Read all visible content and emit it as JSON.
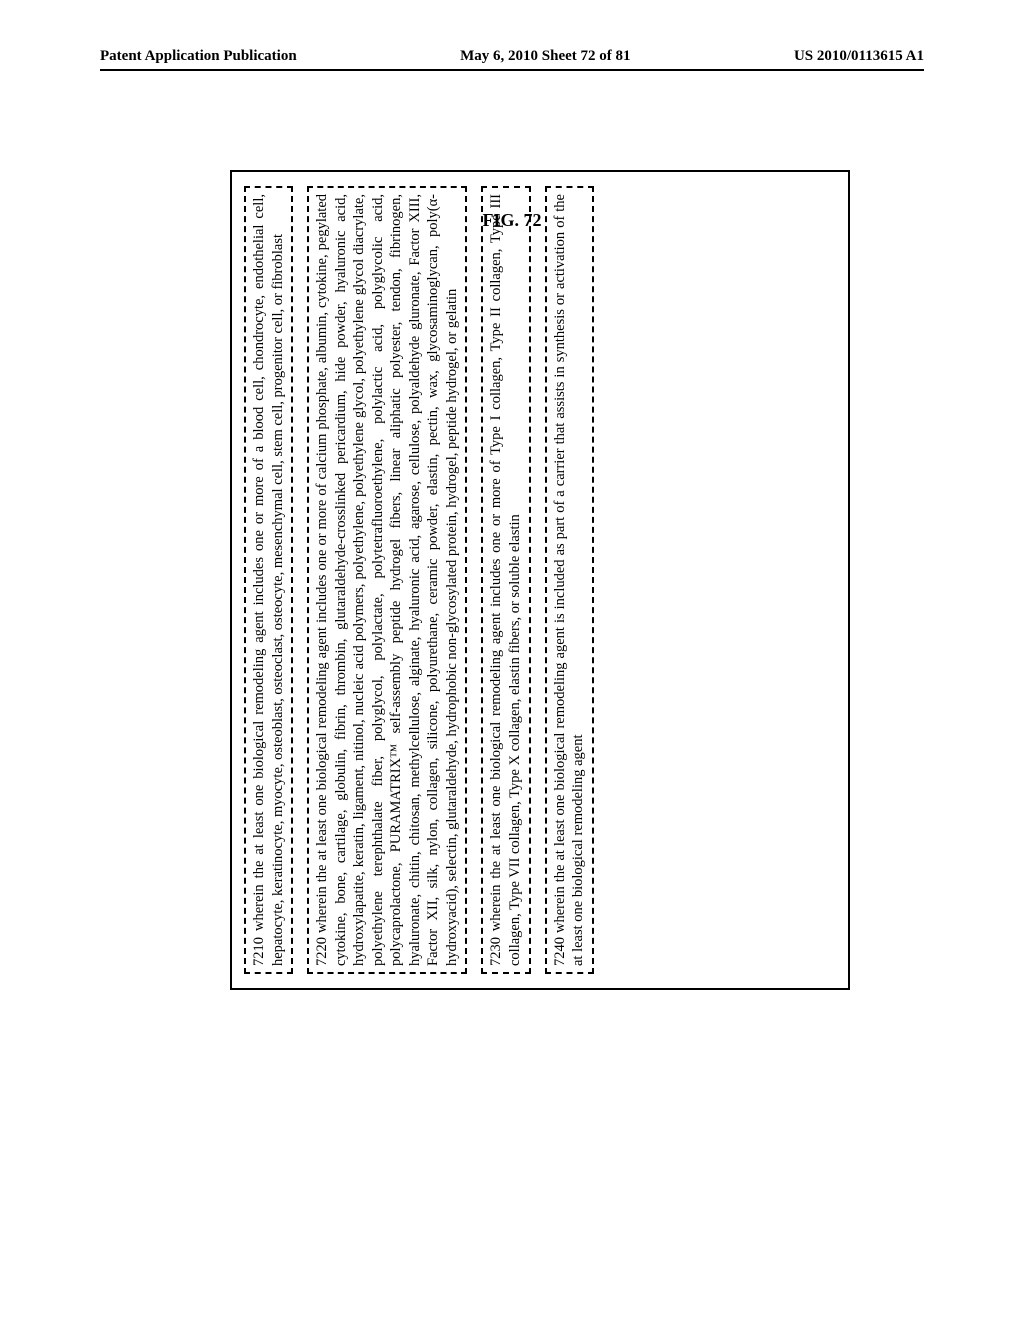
{
  "header": {
    "left": "Patent Application Publication",
    "center": "May 6, 2010  Sheet 72 of 81",
    "right": "US 2010/0113615 A1"
  },
  "figure_label": "FIG. 72",
  "claims": [
    {
      "num": "7210",
      "text": "wherein the at least one biological remodeling agent includes one or more of a blood cell, chondrocyte, endothelial cell, hepatocyte, keratinocyte, myocyte, osteoblast, osteoclast, osteocyte, mesenchymal cell, stem cell, progenitor cell, or fibroblast"
    },
    {
      "num": "7220",
      "text": "wherein the at least one biological remodeling agent includes one or more of calcium phosphate, albumin, cytokine, pegylated cytokine, bone, cartilage, globulin, fibrin, thrombin, glutaraldehyde-crosslinked pericardium, hide powder, hyaluronic acid, hydroxylapatite, keratin, ligament, nitinol, nucleic acid polymers, polyethylene, polyethylene glycol, polyethylene glycol diacrylate, polyethylene terephthalate fiber, polyglycol, polylactate, polytetrafluoroethylene, polylactic acid, polyglycolic acid, polycaprolactone, PURAMATRIX™ self-assembly peptide hydrogel fibers, linear aliphatic polyester, tendon, fibrinogen, hyaluronate, chitin, chitosan, methylcellulose, alginate, hyaluronic acid, agarose, cellulose, polyaldehyde gluronate, Factor XIII, Factor XII, silk, nylon, collagen, silicone, polyurethane, ceramic powder, elastin, pectin, wax, glycosaminoglycan, poly(α-hydroxyacid), selectin, glutaraldehyde, hydrophobic non-glycosylated protein, hydrogel, peptide hydrogel, or gelatin"
    },
    {
      "num": "7230",
      "text": "wherein the at least one biological remodeling agent includes one or more of Type I collagen, Type II collagen, Type III collagen, Type VII collagen, Type X collagen, elastin fibers, or soluble elastin"
    },
    {
      "num": "7240",
      "text": "wherein the at least one biological remodeling agent is included as part of a carrier that assists in synthesis or activation of the at least one biological remodeling agent"
    }
  ]
}
